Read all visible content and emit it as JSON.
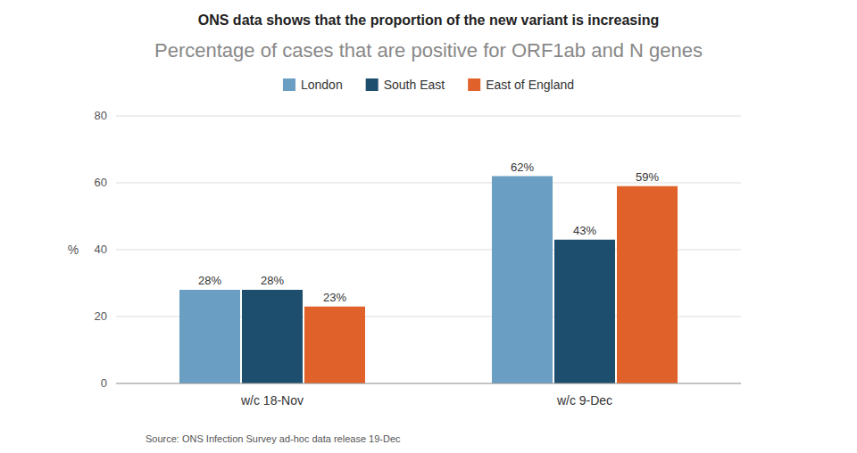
{
  "chart_data": {
    "type": "bar",
    "title": "ONS data shows that the proportion of the new variant is increasing",
    "subtitle": "Percentage of cases that are positive for ORF1ab and N genes",
    "source": "Source: ONS Infection Survey ad-hoc data release 19-Dec",
    "ylabel": "%",
    "categories": [
      "w/c 18-Nov",
      "w/c 9-Dec"
    ],
    "series": [
      {
        "name": "London",
        "values": [
          28,
          62
        ],
        "value_labels": [
          "28%",
          "62%"
        ],
        "color": "#6a9ec2"
      },
      {
        "name": "South East",
        "values": [
          28,
          43
        ],
        "value_labels": [
          "28%",
          "43%"
        ],
        "color": "#1e4e6e"
      },
      {
        "name": "East of England",
        "values": [
          23,
          59
        ],
        "value_labels": [
          "23%",
          "59%"
        ],
        "color": "#e0622a"
      }
    ],
    "ylim": [
      0,
      80
    ],
    "yticks": [
      0,
      20,
      40,
      60,
      80
    ],
    "grid": true,
    "legend": "top",
    "data_labels": true
  }
}
